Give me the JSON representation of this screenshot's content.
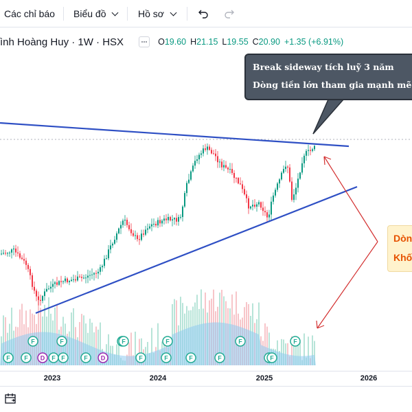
{
  "toolbar": {
    "indicators_label": "Các chỉ báo",
    "chart_type_label": "Biểu đồ",
    "profile_label": "Hồ sơ",
    "undo_icon": "undo-icon",
    "redo_icon": "redo-icon"
  },
  "legend": {
    "title": "ình Hoàng Huy · 1W · HSX",
    "open_key": "O",
    "open": "19.60",
    "high_key": "H",
    "high": "21.15",
    "low_key": "L",
    "low": "19.55",
    "close_key": "C",
    "close": "20.90",
    "change": "+1.35 (+6.91%)"
  },
  "annotations": {
    "callout_line1": "Break sideway tích luỹ 3 năm",
    "callout_line2": "Dòng tiền lớn tham gia mạnh mẽ",
    "note_line1": "Dòn",
    "note_line2": "Khối"
  },
  "chart_data": {
    "type": "candlestick",
    "symbol": "ình Hoàng Huy",
    "interval": "1W",
    "exchange": "HSX",
    "x_ticks": [
      "2023",
      "2024",
      "2025",
      "2026"
    ],
    "events": [
      "F",
      "F",
      "D",
      "F",
      "F",
      "F",
      "D",
      "F",
      "F",
      "F",
      "F",
      "F",
      "F",
      "F",
      "F",
      "F",
      "F",
      "F",
      "F",
      "F"
    ],
    "colors": {
      "up": "#089981",
      "down": "#f23645",
      "trendline": "#2e4fc4",
      "volume": "#7cc3ea",
      "arrow": "#d32f2f"
    }
  },
  "bottombar": {
    "icon": "calendar-range-icon"
  }
}
